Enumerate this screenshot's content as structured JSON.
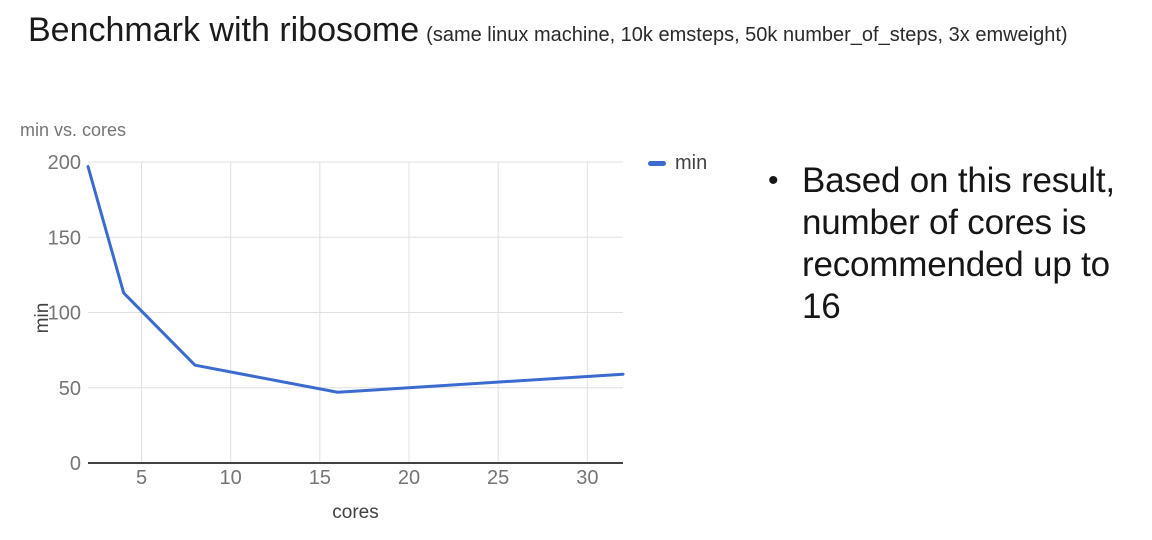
{
  "page": {
    "background": "#ffffff"
  },
  "header": {
    "title": "Benchmark with ribosome",
    "subtitle": "(same linux machine, 10k emsteps, 50k number_of_steps, 3x emweight)"
  },
  "chart_data": {
    "type": "line",
    "title": "min vs. cores",
    "xlabel": "cores",
    "ylabel": "min",
    "x": [
      2,
      4,
      8,
      16,
      32
    ],
    "series": [
      {
        "name": "min",
        "values": [
          197,
          113,
          65,
          47,
          59
        ]
      }
    ],
    "xlim": [
      2,
      32
    ],
    "ylim": [
      0,
      200
    ],
    "xticks": [
      5,
      10,
      15,
      20,
      25,
      30
    ],
    "yticks": [
      0,
      50,
      100,
      150,
      200
    ],
    "grid": true,
    "legend_position": "top-right",
    "colors": {
      "series": "#3b6bce",
      "gridline": "#e0e0e0",
      "axis": "#424242",
      "ticks": "#757575",
      "axis_titles": "#424242",
      "chart_title": "#757575"
    }
  },
  "notes": {
    "bullet": "•",
    "lines": [
      "Based on this result,",
      "number of cores is",
      "recommended up to",
      "16"
    ]
  }
}
